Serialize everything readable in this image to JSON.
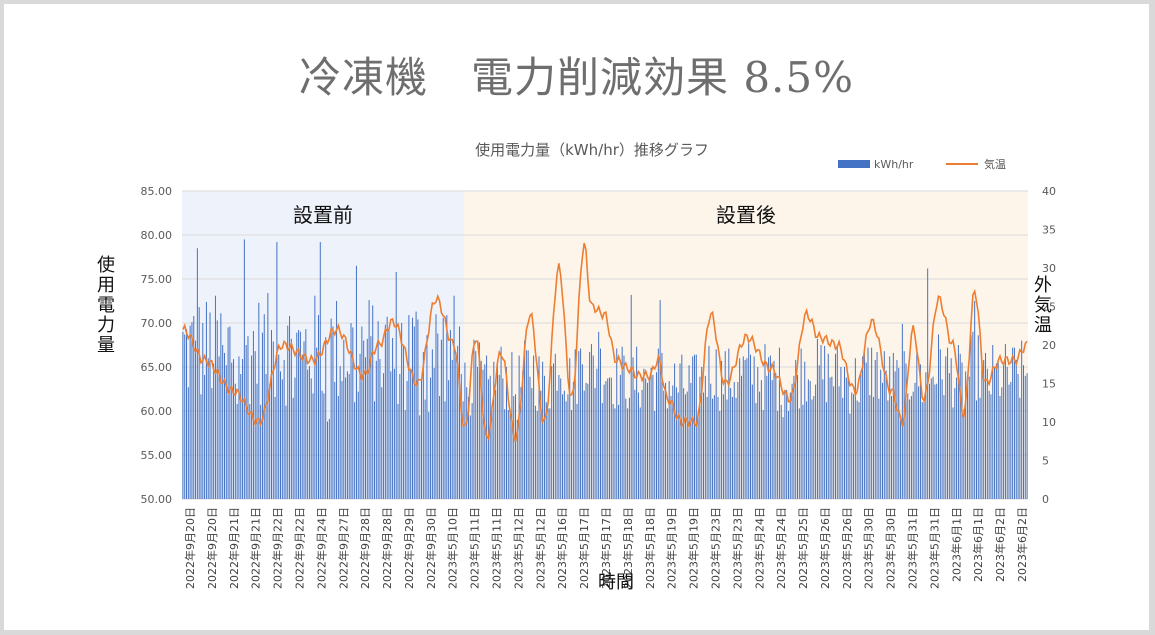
{
  "slide": {
    "title": "冷凍機　電力削減効果 8.5%"
  },
  "chart_data": {
    "type": "bar",
    "title": "使用電力量（kWh/hr）推移グラフ",
    "ylabel": "使用電力量",
    "y2label": "外気温",
    "xlabel": "時間",
    "ylim": [
      50,
      85
    ],
    "y2lim": [
      0,
      40
    ],
    "yticks": [
      "50.00",
      "55.00",
      "60.00",
      "65.00",
      "70.00",
      "75.00",
      "80.00",
      "85.00"
    ],
    "y2ticks": [
      "0",
      "5",
      "10",
      "15",
      "20",
      "25",
      "30",
      "35",
      "40"
    ],
    "grid": true,
    "legend_position": "top-right",
    "regions": [
      {
        "label": "設置前",
        "from_index": 0,
        "to_index": 155,
        "color": "#eef2fa"
      },
      {
        "label": "設置後",
        "from_index": 156,
        "to_index": 467,
        "color": "#fdf5ea"
      }
    ],
    "x_tick_labels": [
      "2022年9月20日",
      "2022年9月20日",
      "2022年9月21日",
      "2022年9月21日",
      "2022年9月22日",
      "2022年9月22日",
      "2022年9月24日",
      "2022年9月27日",
      "2022年9月28日",
      "2022年9月28日",
      "2022年9月29日",
      "2022年9月30日",
      "2023年5月10日",
      "2023年5月11日",
      "2023年5月11日",
      "2023年5月12日",
      "2023年5月12日",
      "2023年5月16日",
      "2023年5月17日",
      "2023年5月17日",
      "2023年5月18日",
      "2023年5月18日",
      "2023年5月19日",
      "2023年5月19日",
      "2023年5月23日",
      "2023年5月23日",
      "2023年5月24日",
      "2023年5月24日",
      "2023年5月25日",
      "2023年5月26日",
      "2023年5月26日",
      "2023年5月30日",
      "2023年5月30日",
      "2023年5月31日",
      "2023年5月31日",
      "2023年6月1日",
      "2023年6月1日",
      "2023年6月2日",
      "2023年6月2日"
    ],
    "series": [
      {
        "name": "kWh/hr",
        "kind": "bar",
        "axis": "left",
        "color": "#4472c4",
        "summary": {
          "before_typical_range": [
            58,
            76
          ],
          "before_spikes": [
            78.5,
            79.5,
            79.2,
            79.2,
            76.5
          ],
          "after_typical_range": [
            59,
            68
          ],
          "after_spikes": [
            73.2,
            76.2,
            72.5,
            70
          ]
        },
        "values": []
      },
      {
        "name": "気温",
        "kind": "line",
        "axis": "right",
        "color": "#ed7d31",
        "keypoints_index": [
          0,
          12,
          28,
          42,
          55,
          72,
          85,
          100,
          108,
          116,
          130,
          140,
          150,
          156,
          162,
          168,
          176,
          184,
          192,
          200,
          208,
          215,
          222,
          226,
          233,
          240,
          246,
          252,
          258,
          263,
          268,
          276,
          284,
          292,
          300,
          312,
          325,
          336,
          345,
          352,
          362,
          372,
          381,
          392,
          398,
          404,
          410,
          418,
          426,
          432,
          438,
          444,
          452,
          460,
          467
        ],
        "keypoints_temp": [
          22,
          18,
          14,
          10,
          20,
          18,
          22,
          16,
          20,
          23,
          15,
          26,
          20,
          9,
          21,
          8,
          19,
          8,
          24,
          10,
          30,
          13,
          33,
          25,
          24,
          18,
          17,
          16,
          16,
          18,
          13,
          10,
          10,
          24,
          15,
          21,
          17,
          13,
          24,
          21,
          20,
          14,
          23,
          14,
          10,
          22,
          13,
          26,
          20,
          11,
          27,
          15,
          18,
          18,
          20
        ]
      }
    ]
  },
  "legend": {
    "bar_label": "kWh/hr",
    "line_label": "気温"
  }
}
